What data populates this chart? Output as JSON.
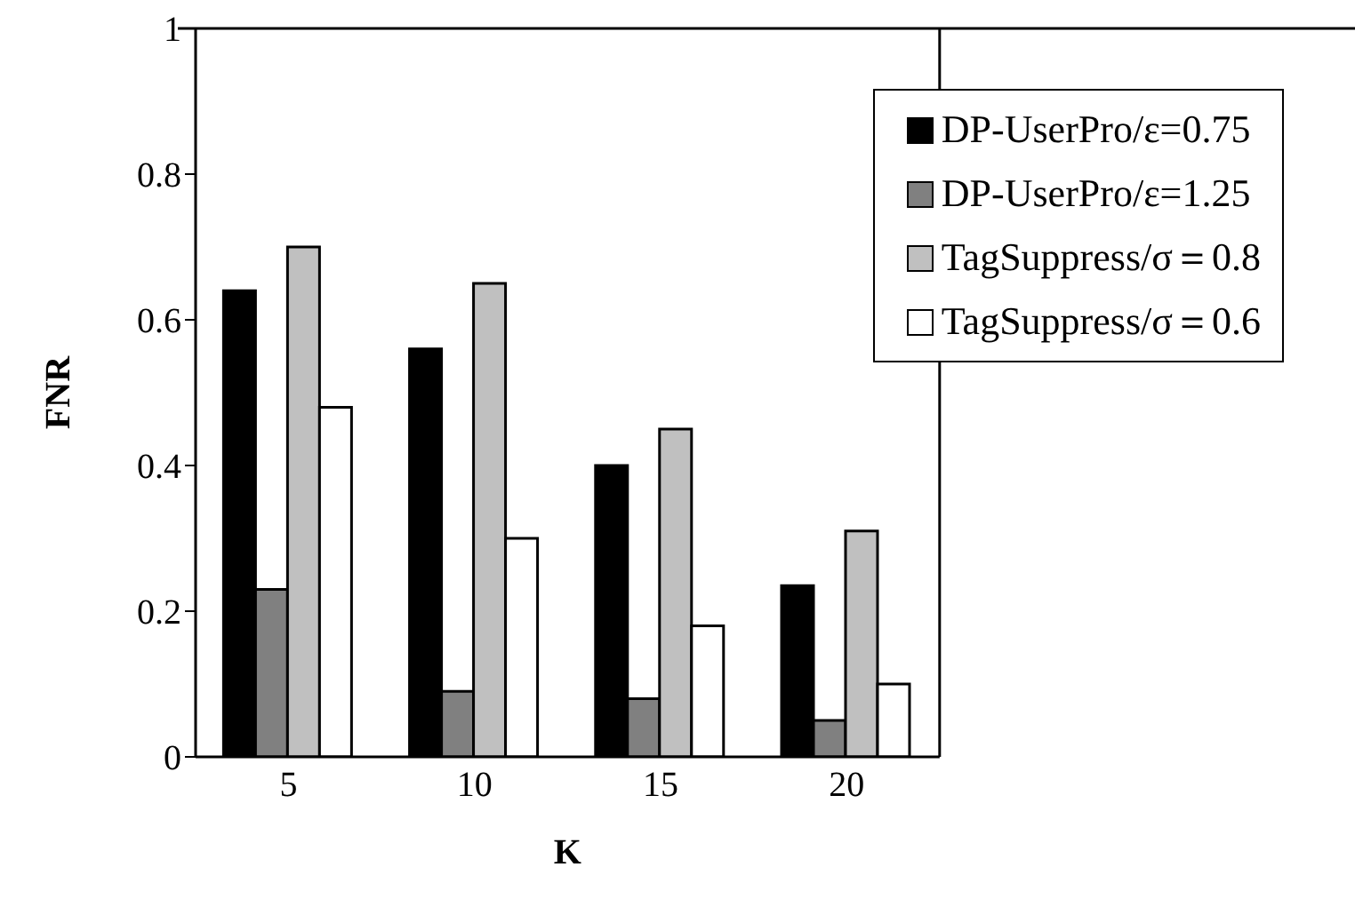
{
  "chart_data": {
    "type": "bar",
    "xlabel": "K",
    "ylabel": "FNR",
    "categories": [
      "5",
      "10",
      "15",
      "20"
    ],
    "series": [
      {
        "name": "DP-UserPro/ε=0.75",
        "color": "#000000",
        "values": [
          0.64,
          0.56,
          0.4,
          0.235
        ]
      },
      {
        "name": "DP-UserPro/ε=1.25",
        "color": "#808080",
        "values": [
          0.23,
          0.09,
          0.08,
          0.05
        ]
      },
      {
        "name": "TagSuppress/σ＝0.8",
        "color": "#c0c0c0",
        "values": [
          0.7,
          0.65,
          0.45,
          0.31
        ]
      },
      {
        "name": "TagSuppress/σ＝0.6",
        "color": "#ffffff",
        "values": [
          0.48,
          0.3,
          0.18,
          0.1
        ]
      }
    ],
    "ylim": [
      0,
      1
    ],
    "yticks": [
      0,
      0.2,
      0.4,
      0.6,
      0.8,
      1
    ],
    "grid": false,
    "legend": "top right"
  }
}
